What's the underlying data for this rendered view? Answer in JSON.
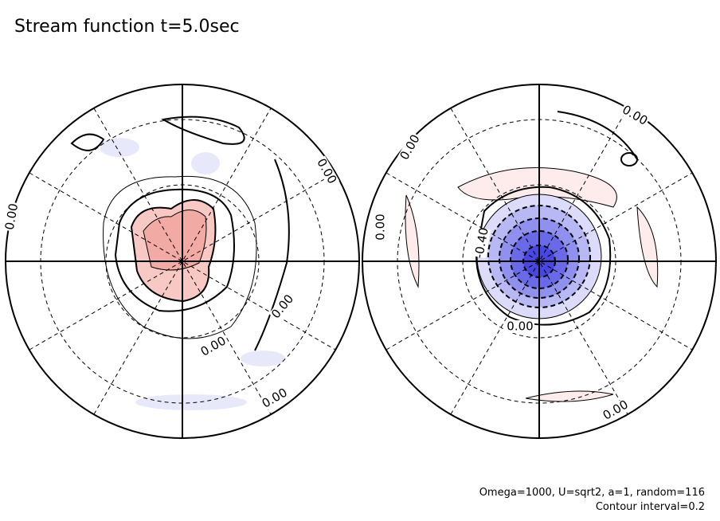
{
  "title": "Stream function t=5.0sec",
  "panels": [
    {
      "contour_labels": [
        "0.00",
        "0.00",
        "0.00",
        "0.00",
        "0.00"
      ]
    },
    {
      "contour_labels": [
        "0.00",
        "0.00",
        "0.00",
        "-0.40",
        "0.00",
        "0.00"
      ]
    }
  ],
  "footer": {
    "parameters": "Omega=1000, U=sqrt2, a=1, random=116",
    "contour_interval": "Contour interval=0.2"
  }
}
